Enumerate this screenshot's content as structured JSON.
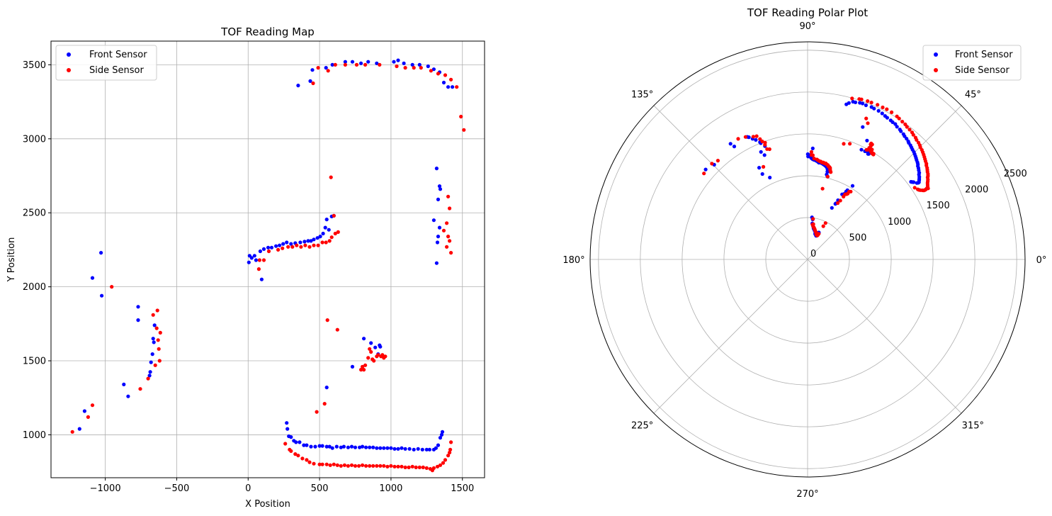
{
  "figure": {
    "background": "#ffffff"
  },
  "chart_data": [
    {
      "type": "scatter",
      "title": "TOF Reading Map",
      "xlabel": "X Position",
      "ylabel": "Y Position",
      "xlim": [
        -1380,
        1655
      ],
      "ylim": [
        710,
        3660
      ],
      "xticks": [
        -1000,
        -500,
        0,
        500,
        1000,
        1500
      ],
      "yticks": [
        1000,
        1500,
        2000,
        2500,
        3000,
        3500
      ],
      "grid": true,
      "legend": {
        "position": "top-left",
        "entries": [
          "Front Sensor",
          "Side Sensor"
        ]
      },
      "series": [
        {
          "name": "Front Sensor",
          "color": "#0000ff",
          "points": [
            [
              -1180,
              1040
            ],
            [
              -1145,
              1160
            ],
            [
              -1090,
              2060
            ],
            [
              -1030,
              2230
            ],
            [
              -1025,
              1940
            ],
            [
              -870,
              1340
            ],
            [
              -840,
              1260
            ],
            [
              -770,
              1865
            ],
            [
              -770,
              1775
            ],
            [
              -690,
              1400
            ],
            [
              -685,
              1425
            ],
            [
              -680,
              1490
            ],
            [
              -670,
              1545
            ],
            [
              -665,
              1650
            ],
            [
              -660,
              1625
            ],
            [
              -655,
              1740
            ],
            [
              5,
              2165
            ],
            [
              10,
              2210
            ],
            [
              25,
              2195
            ],
            [
              45,
              2210
            ],
            [
              55,
              2180
            ],
            [
              85,
              2240
            ],
            [
              95,
              2050
            ],
            [
              110,
              2255
            ],
            [
              140,
              2265
            ],
            [
              165,
              2265
            ],
            [
              195,
              2275
            ],
            [
              220,
              2280
            ],
            [
              245,
              2290
            ],
            [
              270,
              2300
            ],
            [
              300,
              2290
            ],
            [
              330,
              2295
            ],
            [
              365,
              2300
            ],
            [
              395,
              2305
            ],
            [
              420,
              2310
            ],
            [
              440,
              2310
            ],
            [
              460,
              2320
            ],
            [
              485,
              2330
            ],
            [
              505,
              2340
            ],
            [
              525,
              2360
            ],
            [
              540,
              2400
            ],
            [
              550,
              2455
            ],
            [
              565,
              2385
            ],
            [
              585,
              2475
            ],
            [
              600,
              2480
            ],
            [
              270,
              1080
            ],
            [
              275,
              1040
            ],
            [
              285,
              990
            ],
            [
              300,
              985
            ],
            [
              320,
              960
            ],
            [
              335,
              950
            ],
            [
              360,
              950
            ],
            [
              390,
              930
            ],
            [
              410,
              930
            ],
            [
              440,
              920
            ],
            [
              470,
              920
            ],
            [
              500,
              925
            ],
            [
              520,
              925
            ],
            [
              550,
              920
            ],
            [
              570,
              920
            ],
            [
              590,
              910
            ],
            [
              620,
              920
            ],
            [
              650,
              915
            ],
            [
              670,
              920
            ],
            [
              700,
              915
            ],
            [
              725,
              920
            ],
            [
              750,
              915
            ],
            [
              780,
              915
            ],
            [
              800,
              920
            ],
            [
              825,
              915
            ],
            [
              850,
              915
            ],
            [
              875,
              915
            ],
            [
              900,
              910
            ],
            [
              925,
              910
            ],
            [
              950,
              910
            ],
            [
              975,
              910
            ],
            [
              1000,
              910
            ],
            [
              1025,
              905
            ],
            [
              1050,
              905
            ],
            [
              1075,
              910
            ],
            [
              1100,
              905
            ],
            [
              1130,
              905
            ],
            [
              1160,
              900
            ],
            [
              1190,
              905
            ],
            [
              1220,
              900
            ],
            [
              1250,
              900
            ],
            [
              1270,
              900
            ],
            [
              1300,
              900
            ],
            [
              1315,
              910
            ],
            [
              1330,
              930
            ],
            [
              1345,
              980
            ],
            [
              1355,
              1000
            ],
            [
              1360,
              1020
            ],
            [
              550,
              1320
            ],
            [
              730,
              1460
            ],
            [
              810,
              1650
            ],
            [
              860,
              1620
            ],
            [
              890,
              1590
            ],
            [
              920,
              1605
            ],
            [
              925,
              1595
            ],
            [
              910,
              1545
            ],
            [
              350,
              3360
            ],
            [
              435,
              3390
            ],
            [
              450,
              3465
            ],
            [
              545,
              3480
            ],
            [
              590,
              3500
            ],
            [
              680,
              3520
            ],
            [
              730,
              3520
            ],
            [
              790,
              3510
            ],
            [
              840,
              3520
            ],
            [
              900,
              3510
            ],
            [
              1020,
              3520
            ],
            [
              1050,
              3530
            ],
            [
              1090,
              3510
            ],
            [
              1150,
              3500
            ],
            [
              1200,
              3500
            ],
            [
              1260,
              3490
            ],
            [
              1300,
              3470
            ],
            [
              1340,
              3450
            ],
            [
              1370,
              3380
            ],
            [
              1400,
              3350
            ],
            [
              1430,
              3350
            ],
            [
              1300,
              2450
            ],
            [
              1320,
              2800
            ],
            [
              1340,
              2680
            ],
            [
              1345,
              2660
            ],
            [
              1330,
              2590
            ],
            [
              1340,
              2400
            ],
            [
              1330,
              2340
            ],
            [
              1325,
              2300
            ],
            [
              1320,
              2160
            ]
          ]
        },
        {
          "name": "Side Sensor",
          "color": "#ff0000",
          "points": [
            [
              -1230,
              1020
            ],
            [
              -1120,
              1120
            ],
            [
              -1090,
              1200
            ],
            [
              -955,
              2000
            ],
            [
              -755,
              1310
            ],
            [
              -700,
              1380
            ],
            [
              -665,
              1810
            ],
            [
              -650,
              1470
            ],
            [
              -640,
              1720
            ],
            [
              -630,
              1640
            ],
            [
              -625,
              1580
            ],
            [
              -620,
              1500
            ],
            [
              -615,
              1690
            ],
            [
              -635,
              1840
            ],
            [
              75,
              2120
            ],
            [
              80,
              2180
            ],
            [
              110,
              2180
            ],
            [
              145,
              2240
            ],
            [
              210,
              2250
            ],
            [
              240,
              2260
            ],
            [
              280,
              2270
            ],
            [
              310,
              2270
            ],
            [
              340,
              2280
            ],
            [
              370,
              2270
            ],
            [
              400,
              2280
            ],
            [
              430,
              2270
            ],
            [
              460,
              2280
            ],
            [
              490,
              2280
            ],
            [
              520,
              2300
            ],
            [
              545,
              2300
            ],
            [
              570,
              2310
            ],
            [
              585,
              2335
            ],
            [
              610,
              2360
            ],
            [
              630,
              2370
            ],
            [
              600,
              2480
            ],
            [
              580,
              2740
            ],
            [
              555,
              1775
            ],
            [
              625,
              1710
            ],
            [
              535,
              1210
            ],
            [
              480,
              1155
            ],
            [
              260,
              940
            ],
            [
              290,
              900
            ],
            [
              300,
              890
            ],
            [
              330,
              870
            ],
            [
              350,
              860
            ],
            [
              380,
              840
            ],
            [
              410,
              830
            ],
            [
              430,
              815
            ],
            [
              460,
              805
            ],
            [
              500,
              800
            ],
            [
              520,
              800
            ],
            [
              550,
              800
            ],
            [
              575,
              795
            ],
            [
              600,
              800
            ],
            [
              625,
              795
            ],
            [
              650,
              790
            ],
            [
              675,
              795
            ],
            [
              700,
              790
            ],
            [
              725,
              795
            ],
            [
              750,
              790
            ],
            [
              775,
              790
            ],
            [
              800,
              795
            ],
            [
              825,
              790
            ],
            [
              850,
              790
            ],
            [
              875,
              790
            ],
            [
              900,
              790
            ],
            [
              925,
              790
            ],
            [
              950,
              790
            ],
            [
              975,
              785
            ],
            [
              1000,
              790
            ],
            [
              1025,
              785
            ],
            [
              1050,
              785
            ],
            [
              1075,
              785
            ],
            [
              1100,
              780
            ],
            [
              1125,
              780
            ],
            [
              1150,
              785
            ],
            [
              1175,
              780
            ],
            [
              1200,
              780
            ],
            [
              1225,
              780
            ],
            [
              1250,
              775
            ],
            [
              1275,
              770
            ],
            [
              1290,
              760
            ],
            [
              1300,
              775
            ],
            [
              1325,
              785
            ],
            [
              1345,
              795
            ],
            [
              1365,
              810
            ],
            [
              1380,
              830
            ],
            [
              1400,
              860
            ],
            [
              1410,
              880
            ],
            [
              1415,
              900
            ],
            [
              1420,
              950
            ],
            [
              790,
              1440
            ],
            [
              800,
              1460
            ],
            [
              810,
              1440
            ],
            [
              820,
              1470
            ],
            [
              840,
              1520
            ],
            [
              850,
              1580
            ],
            [
              860,
              1560
            ],
            [
              870,
              1510
            ],
            [
              880,
              1500
            ],
            [
              900,
              1530
            ],
            [
              910,
              1540
            ],
            [
              930,
              1530
            ],
            [
              940,
              1540
            ],
            [
              960,
              1530
            ],
            [
              950,
              1520
            ],
            [
              455,
              3375
            ],
            [
              490,
              3480
            ],
            [
              560,
              3460
            ],
            [
              610,
              3500
            ],
            [
              680,
              3500
            ],
            [
              760,
              3500
            ],
            [
              820,
              3500
            ],
            [
              920,
              3500
            ],
            [
              1040,
              3490
            ],
            [
              1100,
              3480
            ],
            [
              1160,
              3480
            ],
            [
              1210,
              3480
            ],
            [
              1280,
              3460
            ],
            [
              1330,
              3440
            ],
            [
              1380,
              3430
            ],
            [
              1420,
              3400
            ],
            [
              1460,
              3350
            ],
            [
              1490,
              3150
            ],
            [
              1510,
              3060
            ],
            [
              1400,
              2610
            ],
            [
              1410,
              2530
            ],
            [
              1390,
              2430
            ],
            [
              1370,
              2380
            ],
            [
              1400,
              2340
            ],
            [
              1410,
              2310
            ],
            [
              1390,
              2270
            ],
            [
              1420,
              2230
            ]
          ]
        }
      ]
    },
    {
      "type": "polar-scatter",
      "title": "TOF Reading Polar Plot",
      "rmax": 2600,
      "rticks": [
        0,
        500,
        1000,
        1500,
        2000,
        2500
      ],
      "angle_ticks": [
        "0°",
        "45°",
        "90°",
        "135°",
        "180°",
        "225°",
        "270°",
        "315°"
      ],
      "grid": true,
      "legend": {
        "position": "top-right",
        "entries": [
          "Front Sensor",
          "Side Sensor"
        ]
      },
      "series": [
        {
          "name": "Front Sensor",
          "color": "#0000ff"
        },
        {
          "name": "Side Sensor",
          "color": "#ff0000"
        }
      ]
    }
  ]
}
